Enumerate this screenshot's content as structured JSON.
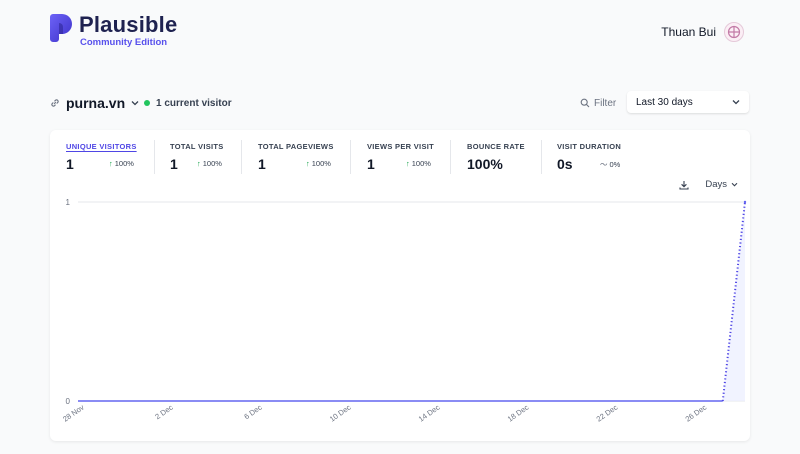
{
  "header": {
    "brand_name": "Plausible",
    "brand_sub": "Community Edition",
    "user_name": "Thuan Bui"
  },
  "toolbar": {
    "site_name": "purna.vn",
    "current_visitors": "1 current visitor",
    "filter_label": "Filter",
    "date_range": "Last 30 days"
  },
  "metrics": [
    {
      "label": "Unique visitors",
      "value": "1",
      "change": "100%",
      "trend": "up"
    },
    {
      "label": "Total visits",
      "value": "1",
      "change": "100%",
      "trend": "up"
    },
    {
      "label": "Total pageviews",
      "value": "1",
      "change": "100%",
      "trend": "up"
    },
    {
      "label": "Views per visit",
      "value": "1",
      "change": "100%",
      "trend": "up"
    },
    {
      "label": "Bounce rate",
      "value": "100%"
    },
    {
      "label": "Visit duration",
      "value": "0s",
      "change": "0%",
      "trend": "flat"
    }
  ],
  "interval_label": "Days",
  "colors": {
    "accent": "#5850ec",
    "line": "#6366f1",
    "up": "#16a34a",
    "live_dot": "#22c55e"
  },
  "chart_data": {
    "type": "line",
    "x": [
      "28 Nov",
      "29 Nov",
      "30 Nov",
      "1 Dec",
      "2 Dec",
      "3 Dec",
      "4 Dec",
      "5 Dec",
      "6 Dec",
      "7 Dec",
      "8 Dec",
      "9 Dec",
      "10 Dec",
      "11 Dec",
      "12 Dec",
      "13 Dec",
      "14 Dec",
      "15 Dec",
      "16 Dec",
      "17 Dec",
      "18 Dec",
      "19 Dec",
      "20 Dec",
      "21 Dec",
      "22 Dec",
      "23 Dec",
      "24 Dec",
      "25 Dec",
      "26 Dec",
      "27 Dec",
      "28 Dec"
    ],
    "tick_labels": [
      "28 Nov",
      "2 Dec",
      "6 Dec",
      "10 Dec",
      "14 Dec",
      "18 Dec",
      "22 Dec",
      "26 Dec"
    ],
    "series": [
      {
        "values": [
          0,
          0,
          0,
          0,
          0,
          0,
          0,
          0,
          0,
          0,
          0,
          0,
          0,
          0,
          0,
          0,
          0,
          0,
          0,
          0,
          0,
          0,
          0,
          0,
          0,
          0,
          0,
          0,
          0,
          0,
          1
        ]
      }
    ],
    "yticks": [
      "0",
      "1"
    ],
    "ylim": [
      0,
      1
    ],
    "grid": true,
    "last_segment_style": "dotted"
  }
}
